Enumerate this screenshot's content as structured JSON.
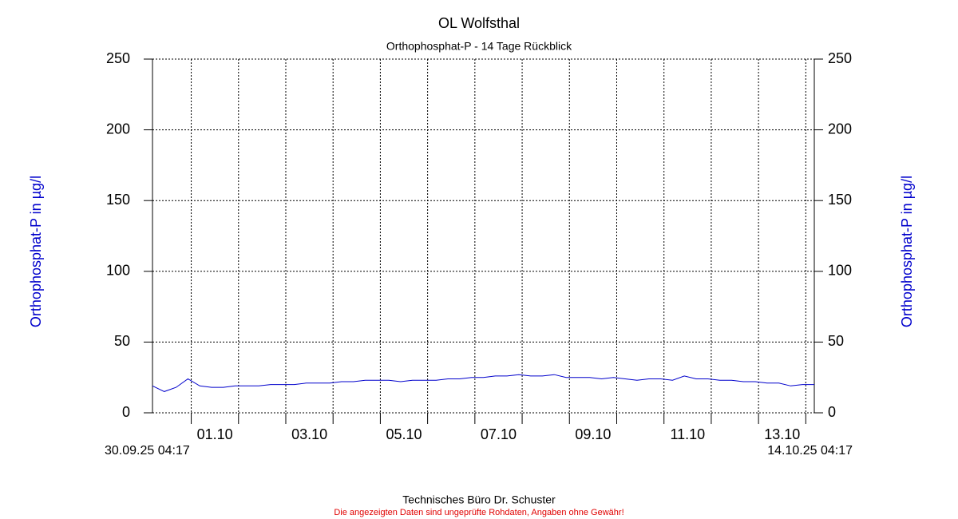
{
  "chart_data": {
    "type": "line",
    "title": "OL Wolfsthal",
    "subtitle": "Orthophosphat-P - 14 Tage Rückblick",
    "ylabel": "Orthophosphat-P in µg/l",
    "y2label": "Orthophosphat-P in µg/l",
    "start_label": "30.09.25 04:17",
    "end_label": "14.10.25 04:17",
    "footer": "Technisches Büro Dr. Schuster",
    "disclaimer": "Die angezeigten Daten sind ungeprüfte Rohdaten, Angaben ohne Gewähr!",
    "xlim": [
      0,
      14
    ],
    "xticks": [
      {
        "value": 0.82,
        "label": null
      },
      {
        "value": 1.82,
        "label": "01.10"
      },
      {
        "value": 2.82,
        "label": null
      },
      {
        "value": 3.82,
        "label": "03.10"
      },
      {
        "value": 4.82,
        "label": null
      },
      {
        "value": 5.82,
        "label": "05.10"
      },
      {
        "value": 6.82,
        "label": null
      },
      {
        "value": 7.82,
        "label": "07.10"
      },
      {
        "value": 8.82,
        "label": null
      },
      {
        "value": 9.82,
        "label": "09.10"
      },
      {
        "value": 10.82,
        "label": null
      },
      {
        "value": 11.82,
        "label": "11.10"
      },
      {
        "value": 12.82,
        "label": null
      },
      {
        "value": 13.82,
        "label": "13.10"
      }
    ],
    "ylim": [
      0,
      250
    ],
    "yticks": [
      0,
      50,
      100,
      150,
      200,
      250
    ],
    "y2lim": [
      0,
      250
    ],
    "y2ticks": [
      0,
      50,
      100,
      150,
      200,
      250
    ],
    "grid": true,
    "series": [
      {
        "name": "Orthophosphat-P",
        "color": "#0000cc",
        "x": [
          0,
          0.25,
          0.5,
          0.75,
          1,
          1.25,
          1.5,
          1.75,
          2,
          2.25,
          2.5,
          2.75,
          3,
          3.25,
          3.5,
          3.75,
          4,
          4.25,
          4.5,
          4.75,
          5,
          5.25,
          5.5,
          5.75,
          6,
          6.25,
          6.5,
          6.75,
          7,
          7.25,
          7.5,
          7.75,
          8,
          8.25,
          8.5,
          8.75,
          9,
          9.25,
          9.5,
          9.75,
          10,
          10.25,
          10.5,
          10.75,
          11,
          11.25,
          11.5,
          11.75,
          12,
          12.25,
          12.5,
          12.75,
          13,
          13.25,
          13.5,
          13.75,
          14
        ],
        "values": [
          19,
          15,
          18,
          24,
          19,
          18,
          18,
          19,
          19,
          19,
          20,
          20,
          20,
          21,
          21,
          21,
          22,
          22,
          23,
          23,
          23,
          22,
          23,
          23,
          23,
          24,
          24,
          25,
          25,
          26,
          26,
          27,
          26,
          26,
          27,
          25,
          25,
          25,
          24,
          25,
          24,
          23,
          24,
          24,
          23,
          26,
          24,
          24,
          23,
          23,
          22,
          22,
          21,
          21,
          19,
          20,
          20
        ]
      }
    ]
  }
}
